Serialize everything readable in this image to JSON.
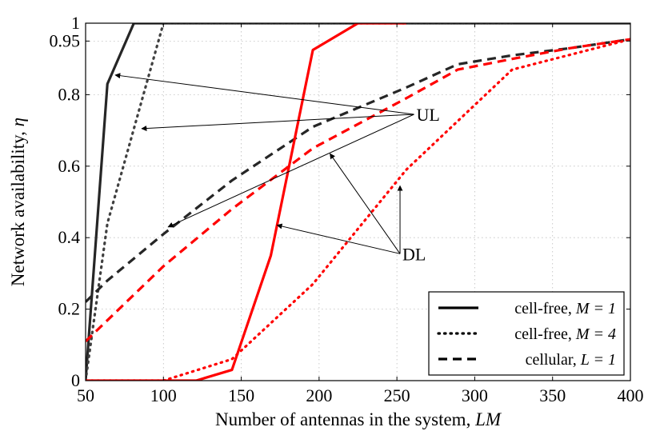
{
  "chart_data": {
    "type": "line",
    "xlabel": "Number of antennas in the system, ",
    "xlabel_math": "LM",
    "ylabel": "Network availability, ",
    "ylabel_math": "η",
    "xlim": [
      50,
      400
    ],
    "ylim": [
      0,
      1
    ],
    "xticks": [
      50,
      100,
      150,
      200,
      250,
      300,
      350,
      400
    ],
    "xtick_labels": [
      "50",
      "100",
      "150",
      "200",
      "250",
      "300",
      "350",
      "400"
    ],
    "yticks": [
      0,
      0.2,
      0.4,
      0.6,
      0.8,
      0.95,
      1
    ],
    "ytick_labels": [
      "0",
      "0.2",
      "0.4",
      "0.6",
      "0.8",
      "0.95",
      "1"
    ],
    "grid": true,
    "series": [
      {
        "group": "UL",
        "style": "solid",
        "color": "#262626",
        "x": [
          50,
          64,
          81,
          400
        ],
        "y": [
          0.0,
          0.83,
          1.0,
          1.0
        ]
      },
      {
        "group": "UL",
        "style": "dotted",
        "color": "#404040",
        "x": [
          50,
          64,
          100,
          324
        ],
        "y": [
          0.0,
          0.44,
          1.0,
          1.0
        ]
      },
      {
        "group": "UL",
        "style": "dashed",
        "color": "#262626",
        "x": [
          50,
          64,
          100,
          144,
          196,
          256,
          289,
          324,
          361,
          400
        ],
        "y": [
          0.22,
          0.28,
          0.41,
          0.56,
          0.71,
          0.82,
          0.885,
          0.91,
          0.93,
          0.955
        ]
      },
      {
        "group": "DL",
        "style": "solid",
        "color": "#ff0000",
        "x": [
          50,
          121,
          144,
          169,
          196,
          225,
          256
        ],
        "y": [
          0.0,
          0.0,
          0.03,
          0.35,
          0.925,
          1.0,
          1.0
        ]
      },
      {
        "group": "DL",
        "style": "dotted",
        "color": "#ff0000",
        "x": [
          50,
          100,
          144,
          196,
          256,
          324,
          400
        ],
        "y": [
          0.0,
          0.0,
          0.06,
          0.27,
          0.59,
          0.87,
          0.955
        ]
      },
      {
        "group": "DL",
        "style": "dashed",
        "color": "#ff0000",
        "x": [
          50,
          100,
          144,
          196,
          256,
          289,
          324,
          361,
          400
        ],
        "y": [
          0.11,
          0.32,
          0.48,
          0.65,
          0.79,
          0.87,
          0.9,
          0.93,
          0.955
        ]
      }
    ],
    "annotations": [
      {
        "text": "UL",
        "anchor": [
          261,
          0.745
        ],
        "targets": [
          [
            69,
            0.855
          ],
          [
            86,
            0.705
          ],
          [
            103,
            0.43
          ]
        ]
      },
      {
        "text": "DL",
        "anchor": [
          252,
          0.355
        ],
        "targets": [
          [
            173,
            0.435
          ],
          [
            207,
            0.635
          ],
          [
            252,
            0.545
          ]
        ]
      }
    ],
    "legend": {
      "placement": "bottom-right",
      "entries": [
        {
          "style": "solid",
          "label": "cell-free, ",
          "math": "M = 1"
        },
        {
          "style": "dotted",
          "label": "cell-free, ",
          "math": "M = 4"
        },
        {
          "style": "dashed",
          "label": "cellular, ",
          "math": "L = 1"
        }
      ]
    }
  }
}
